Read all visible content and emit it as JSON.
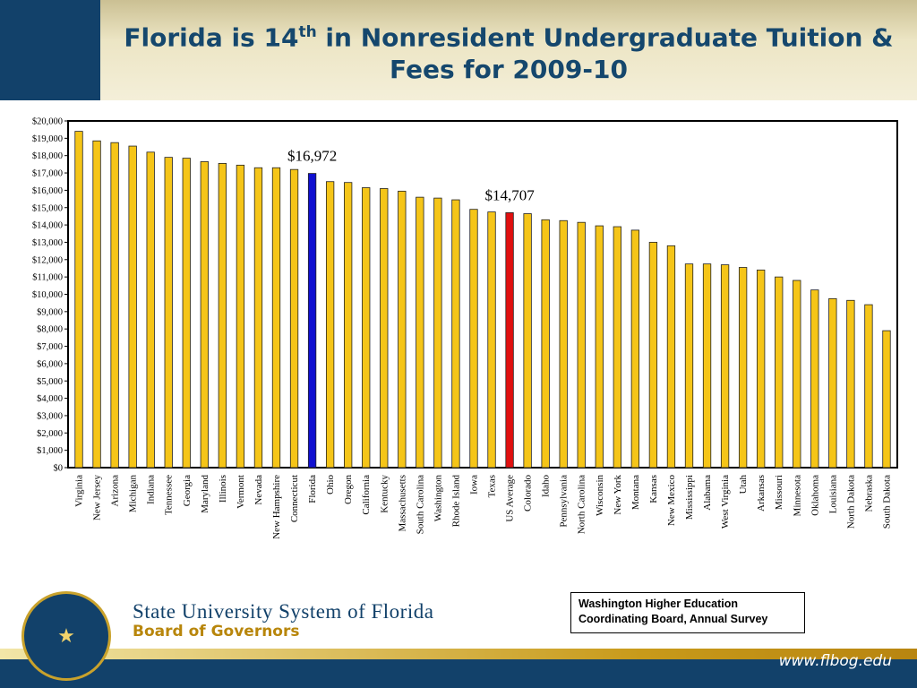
{
  "header": {
    "title_line1_pre": "Florida is 14",
    "title_sup": "th",
    "title_line1_post": " in Nonresident Undergraduate Tuition &",
    "title_line2": "Fees for 2009-10"
  },
  "footer": {
    "org_name": "State University System of Florida",
    "org_sub": "Board of Governors",
    "source_line1": "Washington Higher Education",
    "source_line2": "Coordinating Board, Annual Survey",
    "website": "www.flbog.edu",
    "seal_icon": "florida-seal-icon"
  },
  "colors": {
    "bar_default": "#f5c518",
    "bar_highlight_florida": "#1010d0",
    "bar_highlight_average": "#e01010",
    "bar_stroke": "#222222",
    "header_blue": "#12416a"
  },
  "chart_data": {
    "type": "bar",
    "title": "",
    "xlabel": "",
    "ylabel": "",
    "ylim": [
      0,
      20000
    ],
    "ytick_step": 1000,
    "ytick_labels": [
      "$0",
      "$1,000",
      "$2,000",
      "$3,000",
      "$4,000",
      "$5,000",
      "$6,000",
      "$7,000",
      "$8,000",
      "$9,000",
      "$10,000",
      "$11,000",
      "$12,000",
      "$13,000",
      "$14,000",
      "$15,000",
      "$16,000",
      "$17,000",
      "$18,000",
      "$19,000",
      "$20,000"
    ],
    "grid": false,
    "categories": [
      "Virginia",
      "New Jersey",
      "Arizona",
      "Michigan",
      "Indiana",
      "Tennessee",
      "Georgia",
      "Maryland",
      "Illinois",
      "Vermont",
      "Nevada",
      "New Hampshire",
      "Connecticut",
      "Florida",
      "Ohio",
      "Oregon",
      "California",
      "Kentucky",
      "Massachusetts",
      "South Carolina",
      "Washington",
      "Rhode Island",
      "Iowa",
      "Texas",
      "US Average",
      "Colorado",
      "Idaho",
      "Pennsylvania",
      "North Carolina",
      "Wisconsin",
      "New York",
      "Montana",
      "Kansas",
      "New Mexico",
      "Mississippi",
      "Alabama",
      "West Virginia",
      "Utah",
      "Arkansas",
      "Missouri",
      "Minnesota",
      "Oklahoma",
      "Louisiana",
      "North Dakota",
      "Nebraska",
      "South Dakota"
    ],
    "values": [
      19400,
      18850,
      18750,
      18550,
      18200,
      17900,
      17850,
      17650,
      17550,
      17450,
      17300,
      17300,
      17200,
      16972,
      16500,
      16450,
      16150,
      16100,
      15950,
      15600,
      15550,
      15450,
      14900,
      14750,
      14707,
      14650,
      14300,
      14250,
      14150,
      13950,
      13900,
      13700,
      13000,
      12800,
      11750,
      11750,
      11700,
      11550,
      11400,
      11000,
      10800,
      10250,
      9750,
      9650,
      9400,
      7900
    ],
    "highlights": [
      {
        "category": "Florida",
        "label": "$16,972",
        "color": "#1010d0"
      },
      {
        "category": "US Average",
        "label": "$14,707",
        "color": "#e01010"
      }
    ]
  }
}
